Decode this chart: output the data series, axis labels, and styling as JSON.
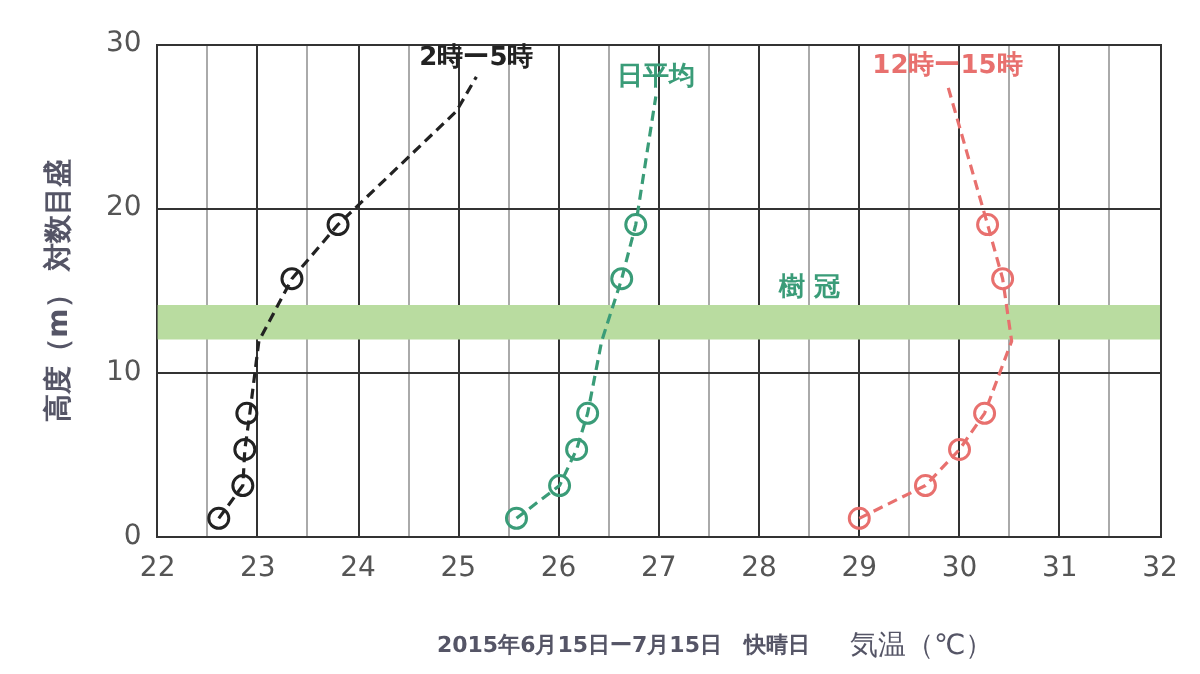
{
  "chart_data": {
    "type": "line",
    "xlabel": "気温（℃）",
    "ylabel": "高度（m） 対数目盛",
    "annotations": [
      "2015年6月15日ー7月15日　快晴日"
    ],
    "xlim": [
      22,
      32
    ],
    "ylim": [
      0,
      30
    ],
    "xticks": [
      22,
      {
        "value": 22.5,
        "label": null
      },
      23,
      {
        "value": 23.5,
        "label": null
      },
      24,
      {
        "value": 24.5,
        "label": null
      },
      25,
      {
        "value": 25.5,
        "label": null
      },
      26,
      {
        "value": 26.5,
        "label": null
      },
      27,
      {
        "value": 27.5,
        "label": null
      },
      28,
      {
        "value": 28.5,
        "label": null
      },
      29,
      {
        "value": 29.5,
        "label": null
      },
      30,
      {
        "value": 30.5,
        "label": null
      },
      31,
      {
        "value": 31.5,
        "label": null
      },
      32
    ],
    "yticks": [
      0,
      10,
      20,
      30
    ],
    "grid": true,
    "legend": false,
    "bands": [
      {
        "axis": "y",
        "from": 12,
        "to": 14.1,
        "label": "樹 冠",
        "color": "#b9dca0"
      }
    ],
    "series": [
      {
        "name": "2時ー5時",
        "type": "line",
        "color": "#222222",
        "line_style": "dashed",
        "marker": "none",
        "x": [
          22.61,
          22.85,
          22.87,
          22.92,
          23.01,
          23.34,
          23.8,
          24.98,
          25.18
        ],
        "values": [
          1.1,
          3.1,
          5.3,
          7.5,
          11.9,
          15.7,
          19,
          25.9,
          28
        ]
      },
      {
        "type": "scatter",
        "color": "#222222",
        "marker": "circle",
        "x": [
          22.61,
          22.85,
          22.87,
          22.89,
          23.34,
          23.8
        ],
        "values": [
          1.1,
          3.1,
          5.3,
          7.5,
          15.7,
          19
        ]
      },
      {
        "name": "日平均",
        "type": "line",
        "color": "#3a9c78",
        "line_style": "dashed",
        "marker": "none",
        "x": [
          25.58,
          26.01,
          26.18,
          26.29,
          26.43,
          26.63,
          26.77,
          26.97
        ],
        "values": [
          1.1,
          3.1,
          5.3,
          7.5,
          11.9,
          15.7,
          19,
          26.8
        ]
      },
      {
        "type": "scatter",
        "color": "#3a9c78",
        "marker": "circle",
        "x": [
          25.58,
          26.01,
          26.18,
          26.29,
          26.63,
          26.77
        ],
        "values": [
          1.1,
          3.1,
          5.3,
          7.5,
          15.7,
          19
        ]
      },
      {
        "name": "12時ー15時",
        "type": "line",
        "color": "#e8706e",
        "line_style": "dashed",
        "marker": "none",
        "x": [
          29.0,
          29.66,
          30.0,
          30.25,
          30.52,
          30.43,
          30.28,
          29.88
        ],
        "values": [
          1.1,
          3.1,
          5.3,
          7.5,
          11.9,
          15.7,
          19,
          27.5
        ]
      },
      {
        "type": "scatter",
        "color": "#e8706e",
        "marker": "circle",
        "x": [
          29.0,
          29.66,
          30.0,
          30.25,
          30.43,
          30.28
        ],
        "values": [
          1.1,
          3.1,
          5.3,
          7.5,
          15.7,
          19
        ]
      }
    ]
  }
}
